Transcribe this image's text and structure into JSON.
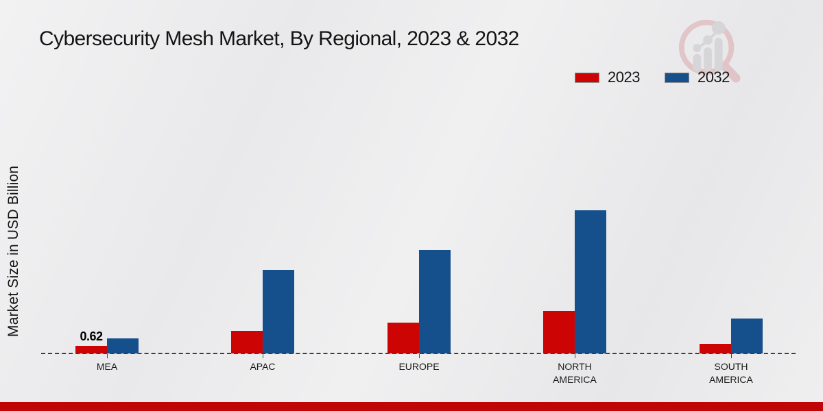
{
  "header": {
    "title": "Cybersecurity Mesh Market, By Regional, 2023 & 2032"
  },
  "colors": {
    "series_2023": "#cc0504",
    "series_2032": "#15508c",
    "footer_bar": "#bf0505",
    "axis_dash": "#3c3c3c"
  },
  "watermark": {
    "icon": "magnifier-bar-chart-logo"
  },
  "chart_data": {
    "type": "bar",
    "title": "Cybersecurity Mesh Market, By Regional, 2023 & 2032",
    "categories": [
      "MEA",
      "APAC",
      "EUROPE",
      "NORTH AMERICA",
      "SOUTH AMERICA"
    ],
    "series": [
      {
        "name": "2023",
        "color": "#cc0504",
        "values": [
          0.62,
          1.86,
          2.55,
          3.5,
          0.8
        ]
      },
      {
        "name": "2032",
        "color": "#15508c",
        "values": [
          1.24,
          6.9,
          8.5,
          11.8,
          2.9
        ]
      }
    ],
    "xlabel": "",
    "ylabel": "Market Size in USD Billion",
    "ylim": [
      0,
      13
    ],
    "grid": false,
    "y_axis_ticks_visible": false,
    "baseline_style": "dashed",
    "legend_position": "top-right",
    "data_labels": [
      {
        "category": "MEA",
        "series": "2023",
        "text": "0.62"
      }
    ]
  }
}
